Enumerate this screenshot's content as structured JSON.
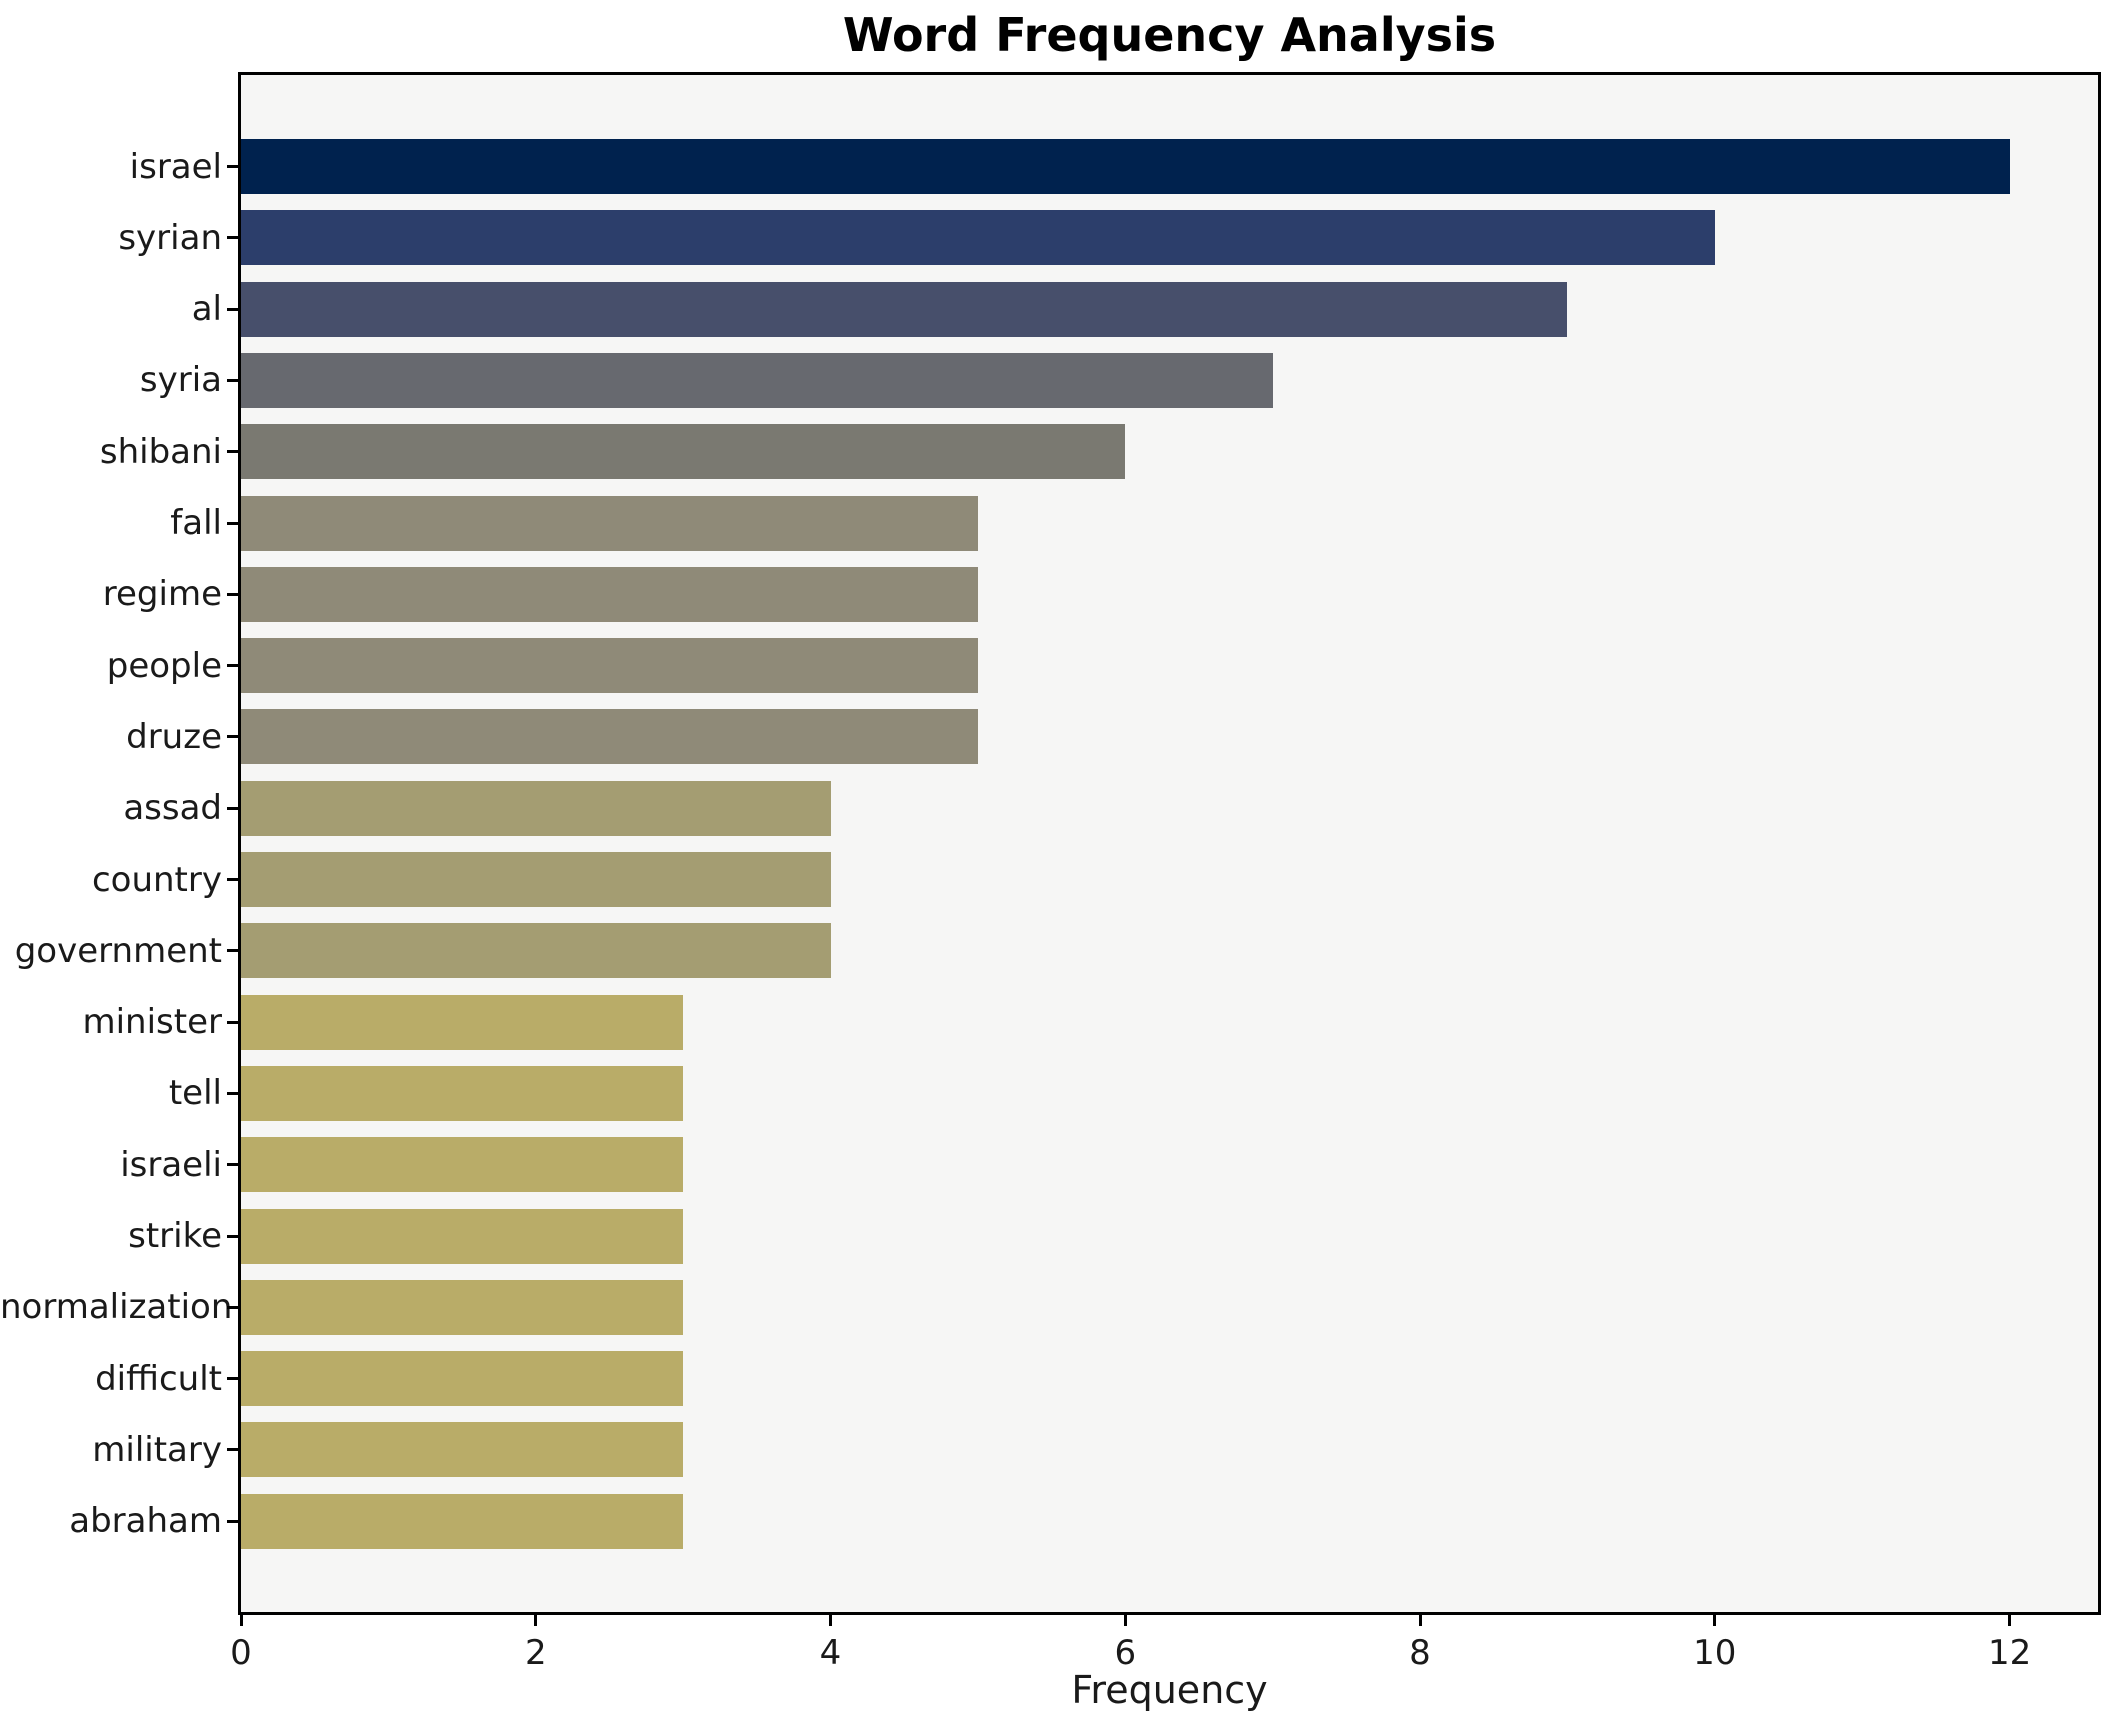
{
  "title": "Word Frequency Analysis",
  "chart_data": {
    "type": "bar",
    "orientation": "horizontal",
    "title": "Word Frequency Analysis",
    "xlabel": "Frequency",
    "ylabel": "",
    "categories": [
      "israel",
      "syrian",
      "al",
      "syria",
      "shibani",
      "fall",
      "regime",
      "people",
      "druze",
      "assad",
      "country",
      "government",
      "minister",
      "tell",
      "israeli",
      "strike",
      "normalization",
      "difficult",
      "military",
      "abraham"
    ],
    "values": [
      12,
      10,
      9,
      7,
      6,
      5,
      5,
      5,
      5,
      4,
      4,
      4,
      3,
      3,
      3,
      3,
      3,
      3,
      3,
      3
    ],
    "bar_colors": [
      "#00224e",
      "#2c3e6b",
      "#474f6b",
      "#67696f",
      "#7a7971",
      "#8f8a78",
      "#8f8a78",
      "#8f8a78",
      "#8f8a78",
      "#a49d72",
      "#a49d72",
      "#a49d72",
      "#b9ac68",
      "#b9ac68",
      "#b9ac68",
      "#b9ac68",
      "#b9ac68",
      "#b9ac68",
      "#b9ac68",
      "#b9ac68"
    ],
    "colormap": "cividis",
    "xlim": [
      0,
      12.6
    ],
    "xticks": [
      0,
      2,
      4,
      6,
      8,
      10,
      12
    ],
    "grid": false,
    "legend": null,
    "plot_bg": "#f6f6f5",
    "figure_bg": "#ffffff",
    "spine_color": "#000000"
  }
}
